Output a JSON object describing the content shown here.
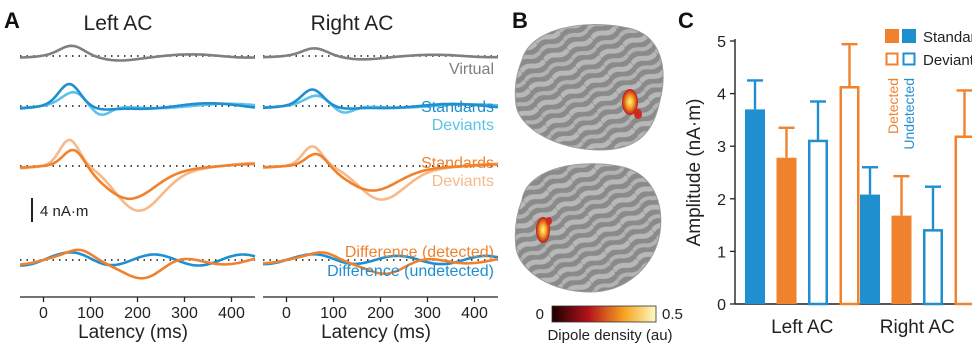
{
  "panels": {
    "a": "A",
    "b": "B",
    "c": "C"
  },
  "colors": {
    "virtual": "#7f7f7f",
    "blue": "#1f8fd0",
    "lightblue": "#5bc3ea",
    "orange": "#f0822d",
    "lightorange": "#f8b98a",
    "text_dark": "#222222"
  },
  "panel_a": {
    "titles": [
      "Left AC",
      "Right AC"
    ],
    "row_labels": {
      "virtual": "Virtual",
      "standards_blue": "Standards",
      "deviants_blue": "Deviants",
      "standards_orange": "Standards",
      "deviants_orange": "Deviants",
      "diff_detected": "Difference (detected)",
      "diff_undetected": "Difference (undetected)"
    },
    "scalebar": "4 nA·m",
    "xlabel": "Latency (ms)",
    "xticks": [
      "0",
      "100",
      "200",
      "300",
      "400"
    ]
  },
  "panel_b": {
    "colorbar_min": "0",
    "colorbar_max": "0.5",
    "colorbar_label": "Dipole density (au)"
  },
  "chart_data": [
    {
      "type": "bar",
      "title": "",
      "xlabel": "",
      "ylabel": "Amplitude (nA·m)",
      "ylim": [
        0,
        5
      ],
      "yticks": [
        "0",
        "1",
        "2",
        "3",
        "4",
        "5"
      ],
      "categories": [
        "Left AC",
        "Right AC"
      ],
      "series": [
        {
          "name": "Standards (Detected)",
          "color": "#1f8fd0",
          "filled": true,
          "values": [
            3.7,
            2.08
          ],
          "errors": [
            0.55,
            0.52
          ]
        },
        {
          "name": "Deviants (Detected)",
          "color": "#f0822d",
          "filled": true,
          "values": [
            2.78,
            1.68
          ],
          "errors": [
            0.57,
            0.75
          ]
        },
        {
          "name": "Standards (Undetected)",
          "color": "#1f8fd0",
          "filled": false,
          "values": [
            3.1,
            1.4
          ],
          "errors": [
            0.75,
            0.83
          ]
        },
        {
          "name": "Deviants (Undetected)",
          "color": "#f0822d",
          "filled": false,
          "values": [
            4.12,
            3.18
          ],
          "errors": [
            0.82,
            0.88
          ]
        }
      ],
      "legend": {
        "standards": "Standards",
        "deviants": "Deviants",
        "detected": "Detected",
        "undetected": "Undetected",
        "placement": "top-right"
      }
    }
  ]
}
